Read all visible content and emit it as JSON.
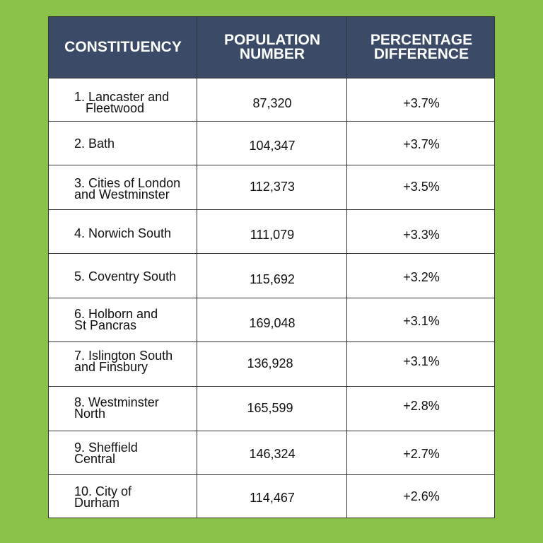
{
  "header": {
    "constituency_label": "CONSTITUENCY",
    "population_label_line1": "POPULATION",
    "population_label_line2": "NUMBER",
    "percentage_label_line1": "PERCENTAGE",
    "percentage_label_line2": "DIFFERENCE"
  },
  "rows": [
    {
      "name_line1": "1. Lancaster and",
      "name_line2": "Fleetwood",
      "population": "87,320",
      "percentage": "+3.7%"
    },
    {
      "name_line1": "2. Bath",
      "name_line2": "",
      "population": "104,347",
      "percentage": "+3.7%"
    },
    {
      "name_line1": "3. Cities of London",
      "name_line2": "and Westminster",
      "population": "112,373",
      "percentage": "+3.5%"
    },
    {
      "name_line1": "4. Norwich South",
      "name_line2": "",
      "population": "111,079",
      "percentage": "+3.3%"
    },
    {
      "name_line1": "5. Coventry South",
      "name_line2": "",
      "population": "115,692",
      "percentage": "+3.2%"
    },
    {
      "name_line1": "6. Holborn and",
      "name_line2": "St Pancras",
      "population": "169,048",
      "percentage": "+3.1%"
    },
    {
      "name_line1": "7. Islington South",
      "name_line2": "and Finsbury",
      "population": "136,928",
      "percentage": "+3.1%"
    },
    {
      "name_line1": "8. Westminster",
      "name_line2": "North",
      "population": "165,599",
      "percentage": "+2.8%"
    },
    {
      "name_line1": "9. Sheffield",
      "name_line2": "Central",
      "population": "146,324",
      "percentage": "+2.7%"
    },
    {
      "name_line1": "10. City of",
      "name_line2": "Durham",
      "population": "114,467",
      "percentage": "+2.6%"
    }
  ],
  "colors": {
    "background": "#8bc34a",
    "header": "#3a4a67",
    "border": "#333333"
  }
}
